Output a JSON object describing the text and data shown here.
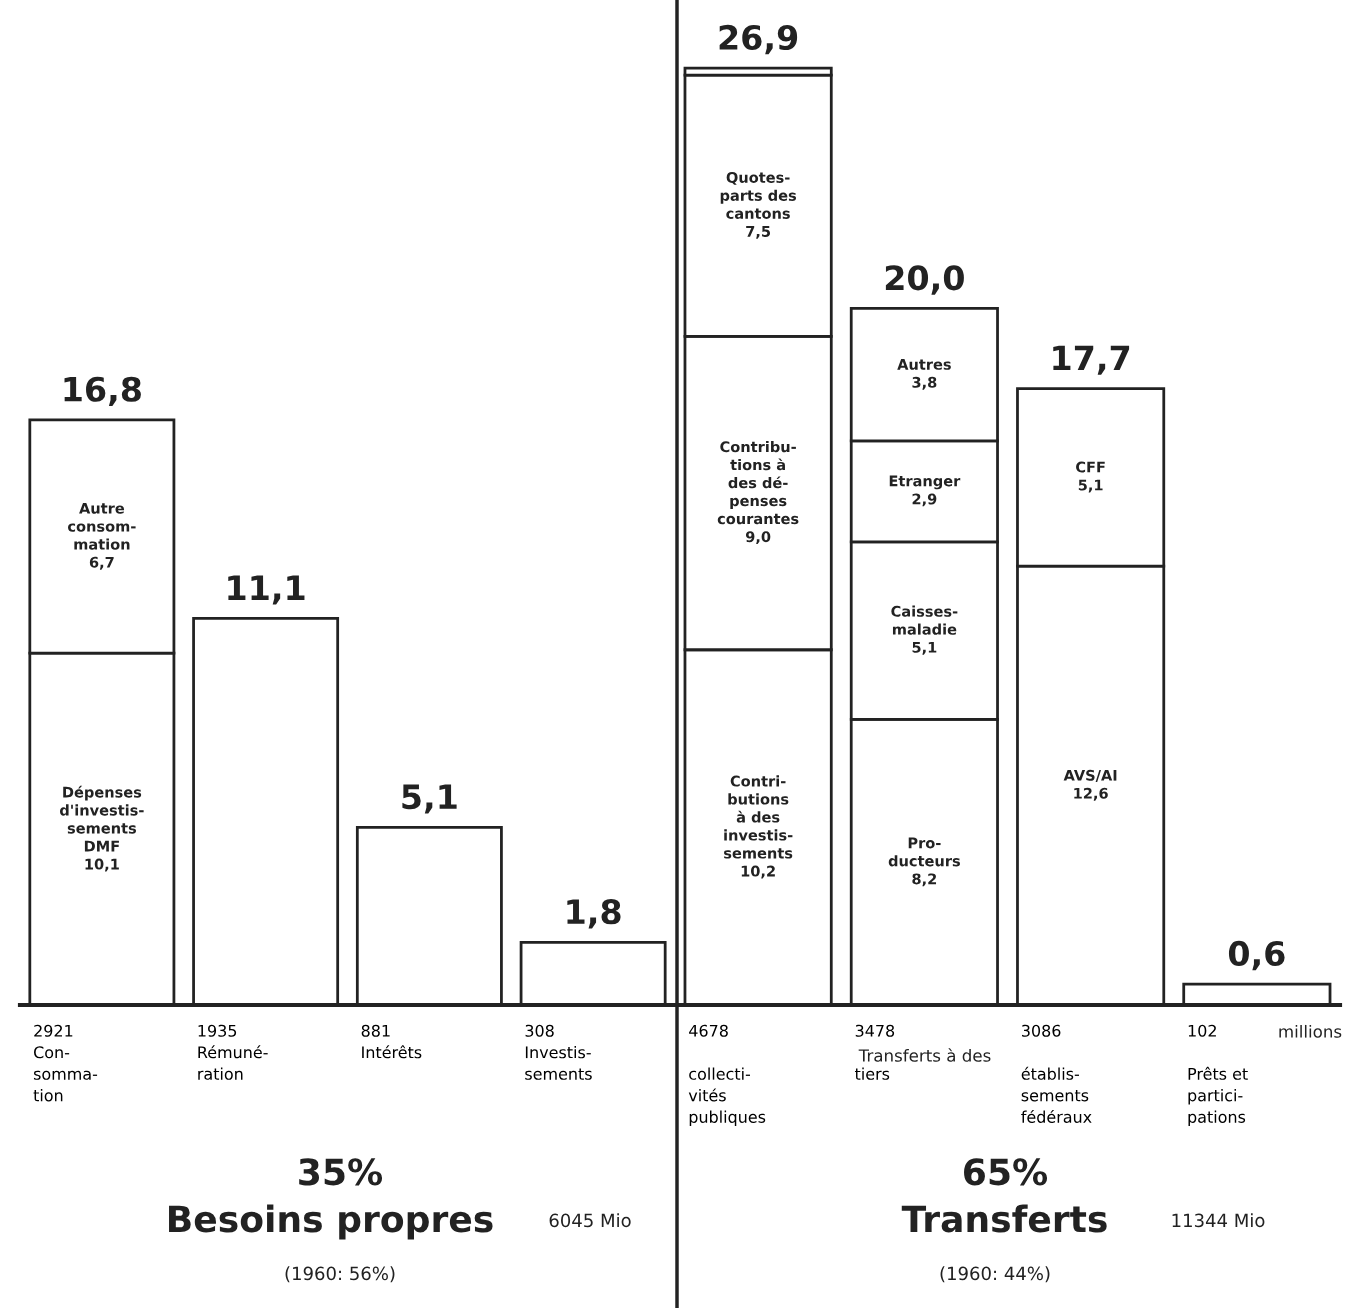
{
  "chart_data": [
    {
      "type": "bar",
      "stacked": true,
      "categories": [
        "2921\nCon-\nsomma-\ntion",
        "1935\nRémuné-\nration",
        "881\nIntérêts",
        "308\nInvestis-\nsements"
      ],
      "series": [
        {
          "color": "#ffffff",
          "values": [
            10.1,
            11.1,
            5.1,
            1.8
          ],
          "value_labels": [
            "Dépenses\nd'investis-\nsements\nDMF\n10,1",
            null,
            null,
            null
          ]
        },
        {
          "color": "#ffffff",
          "values": [
            6.7,
            null,
            null,
            null
          ],
          "value_labels": [
            "Autre\nconsom-\nmation\n6,7",
            null,
            null,
            null
          ]
        }
      ],
      "totals": [
        "16,8",
        "11,1",
        "5,1",
        "1,8"
      ],
      "annotations": [
        "35%",
        "Besoins propres",
        "6045 Mio",
        "(1960: 56%)"
      ]
    },
    {
      "type": "bar",
      "stacked": true,
      "categories": [
        "4678\n\ncollecti-\nvités\npubliques",
        "3478\n\ntiers",
        "3086\n\nétablis-\nsements\nfédéraux",
        "102\n\nPrêts et\npartici-\npations"
      ],
      "series": [
        {
          "color": "#ffffff",
          "values": [
            10.2,
            8.2,
            12.6,
            0.6
          ],
          "value_labels": [
            "Contri-\nbutions\nà des\ninvestis-\nsements\n10,2",
            "Pro-\nducteurs\n8,2",
            "AVS/AI\n12,6",
            null
          ]
        },
        {
          "color": "#ffffff",
          "values": [
            9.0,
            5.1,
            5.1,
            null
          ],
          "value_labels": [
            "Contribu-\ntions à\ndes dé-\npenses\ncourantes\n9,0",
            "Caisses-\nmaladie\n5,1",
            "CFF\n5,1",
            null
          ]
        },
        {
          "color": "#ffffff",
          "values": [
            7.5,
            2.9,
            null,
            null
          ],
          "value_labels": [
            "Quotes-\nparts des\ncantons\n7,5",
            "Etranger\n2,9",
            null,
            null
          ]
        },
        {
          "color": "#ffffff",
          "values": [
            0.2,
            3.8,
            null,
            null
          ],
          "value_labels": [
            null,
            "Autres\n3,8",
            null,
            null
          ]
        }
      ],
      "totals": [
        "26,9",
        "20,0",
        "17,7",
        "0,6"
      ],
      "annotations": [
        "Transferts à des",
        "millions",
        "65%",
        "Transferts",
        "11344 Mio",
        "(1960: 44%)"
      ]
    }
  ]
}
